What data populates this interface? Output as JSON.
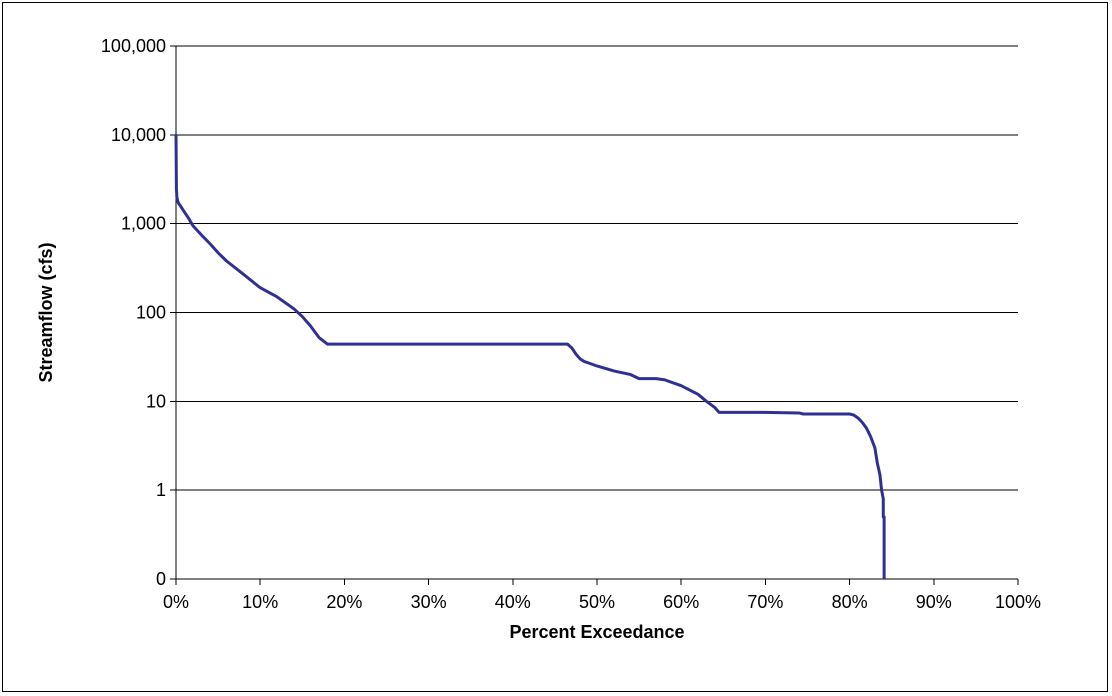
{
  "chart_data": {
    "type": "line",
    "title": "",
    "xlabel": "Percent Exceedance",
    "ylabel": "Streamflow (cfs)",
    "x_scale": "linear",
    "y_scale": "log",
    "xlim": [
      0,
      100
    ],
    "ylim": [
      0.1,
      100000
    ],
    "x_ticks": [
      0,
      10,
      20,
      30,
      40,
      50,
      60,
      70,
      80,
      90,
      100
    ],
    "x_tick_labels": [
      "0%",
      "10%",
      "20%",
      "30%",
      "40%",
      "50%",
      "60%",
      "70%",
      "80%",
      "90%",
      "100%"
    ],
    "y_ticks": [
      0.1,
      1,
      10,
      100,
      1000,
      10000,
      100000
    ],
    "y_tick_labels": [
      "0",
      "1",
      "10",
      "100",
      "1,000",
      "10,000",
      "100,000"
    ],
    "grid": "horizontal",
    "legend": "none",
    "series": [
      {
        "color": "#2e3192",
        "x": [
          0,
          0.05,
          0.1,
          0.2,
          0.3,
          0.5,
          1,
          1.5,
          2,
          3,
          4,
          5,
          6,
          8,
          10,
          12,
          14,
          15,
          16,
          17,
          18,
          20,
          25,
          30,
          35,
          40,
          45,
          46.5,
          47,
          47.5,
          48,
          48.5,
          49,
          50,
          52,
          54,
          55,
          56,
          57,
          58,
          60,
          62,
          63,
          64,
          64.5,
          65,
          70,
          74,
          74.5,
          75,
          78,
          80,
          80.5,
          81,
          81.5,
          82,
          82.5,
          83,
          83.3,
          83.6,
          83.8,
          84,
          84,
          84.1,
          84.1
        ],
        "y": [
          10000,
          2500,
          2000,
          1800,
          1700,
          1600,
          1350,
          1150,
          950,
          750,
          600,
          470,
          380,
          270,
          190,
          150,
          110,
          90,
          70,
          52,
          44,
          44,
          44,
          44,
          44,
          44,
          44,
          44,
          40,
          34,
          30,
          28,
          27,
          25,
          22,
          20,
          18,
          18,
          18,
          17.5,
          15,
          12,
          10,
          8.5,
          7.5,
          7.5,
          7.5,
          7.4,
          7.2,
          7.2,
          7.2,
          7.2,
          7,
          6.5,
          5.8,
          5,
          4,
          3,
          2,
          1.5,
          1,
          0.8,
          0.5,
          0.5,
          0.1
        ]
      }
    ]
  }
}
